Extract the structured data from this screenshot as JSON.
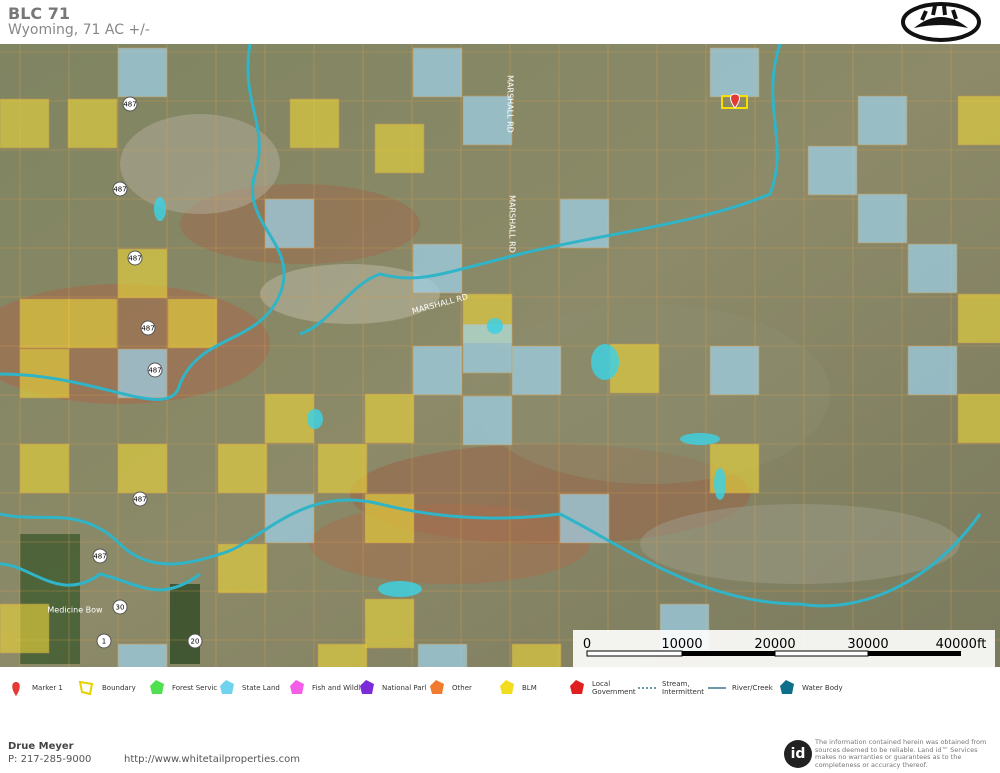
{
  "header": {
    "title": "BLC 71",
    "subtitle": "Wyoming, 71 AC +/-"
  },
  "map": {
    "labels": [
      "487",
      "487",
      "487",
      "487",
      "487",
      "487",
      "487",
      "30",
      "1",
      "20",
      "MARSHALL RD",
      "MARSHALL RD",
      "MARSHALL RD",
      "Medicine Bow"
    ],
    "scale": [
      "0",
      "10000",
      "20000",
      "30000",
      "40000ft"
    ]
  },
  "legend": [
    "Marker 1",
    "Boundary",
    "Forest Servic",
    "State Land",
    "Fish and Wildlife",
    "National Parl",
    "Other",
    "BLM",
    "Local Government",
    "Stream, Intermittent",
    "River/Creek",
    "Water Body"
  ],
  "footer": {
    "name": "Drue Meyer",
    "phone": "P: 217-285-9000",
    "website": "http://www.whitetailproperties.com",
    "logo": "id",
    "disclaimer": "The information contained herein was obtained from sources deemed to be reliable. Land id™ Services makes no warranties or guarantees as to the completeness or accuracy thereof."
  }
}
